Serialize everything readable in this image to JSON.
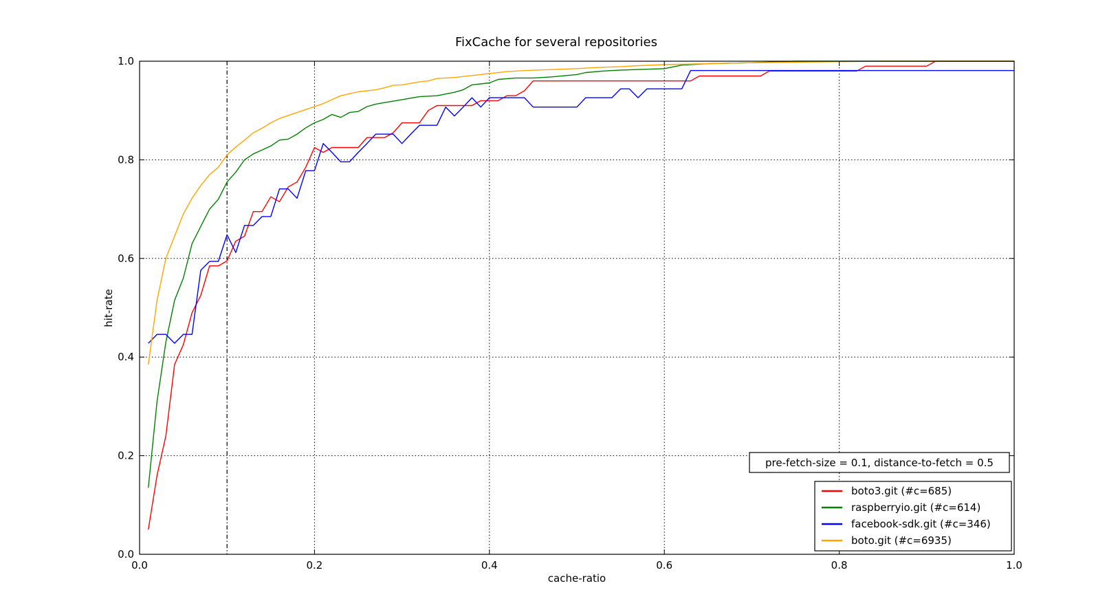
{
  "chart_data": {
    "type": "line",
    "title": "FixCache for several repositories",
    "xlabel": "cache-ratio",
    "ylabel": "hit-rate",
    "xlim": [
      0.0,
      1.0
    ],
    "ylim": [
      0.0,
      1.0
    ],
    "xticks": [
      0.0,
      0.2,
      0.4,
      0.6,
      0.8,
      1.0
    ],
    "xtick_labels": [
      "0.0",
      "0.2",
      "0.4",
      "0.6",
      "0.8",
      "1.0"
    ],
    "yticks": [
      0.0,
      0.2,
      0.4,
      0.6,
      0.8,
      1.0
    ],
    "ytick_labels": [
      "0.0",
      "0.2",
      "0.4",
      "0.6",
      "0.8",
      "1.0"
    ],
    "grid": true,
    "vline_x": 0.1,
    "annotation": "pre-fetch-size = 0.1, distance-to-fetch = 0.5",
    "legend_position": "lower-right",
    "series": [
      {
        "name": "boto3.git (#c=685)",
        "color": "#ff0000",
        "points": [
          [
            0.01,
            0.05
          ],
          [
            0.02,
            0.16
          ],
          [
            0.03,
            0.24
          ],
          [
            0.04,
            0.385
          ],
          [
            0.05,
            0.425
          ],
          [
            0.06,
            0.49
          ],
          [
            0.07,
            0.525
          ],
          [
            0.08,
            0.585
          ],
          [
            0.09,
            0.585
          ],
          [
            0.1,
            0.595
          ],
          [
            0.11,
            0.635
          ],
          [
            0.12,
            0.645
          ],
          [
            0.13,
            0.695
          ],
          [
            0.14,
            0.695
          ],
          [
            0.15,
            0.725
          ],
          [
            0.16,
            0.715
          ],
          [
            0.17,
            0.745
          ],
          [
            0.18,
            0.755
          ],
          [
            0.19,
            0.785
          ],
          [
            0.2,
            0.825
          ],
          [
            0.21,
            0.815
          ],
          [
            0.22,
            0.825
          ],
          [
            0.25,
            0.825
          ],
          [
            0.26,
            0.845
          ],
          [
            0.28,
            0.845
          ],
          [
            0.29,
            0.855
          ],
          [
            0.3,
            0.875
          ],
          [
            0.32,
            0.875
          ],
          [
            0.33,
            0.9
          ],
          [
            0.34,
            0.91
          ],
          [
            0.38,
            0.91
          ],
          [
            0.39,
            0.92
          ],
          [
            0.41,
            0.92
          ],
          [
            0.42,
            0.93
          ],
          [
            0.43,
            0.93
          ],
          [
            0.44,
            0.94
          ],
          [
            0.45,
            0.96
          ],
          [
            0.63,
            0.96
          ],
          [
            0.64,
            0.97
          ],
          [
            0.71,
            0.97
          ],
          [
            0.72,
            0.98
          ],
          [
            0.82,
            0.98
          ],
          [
            0.83,
            0.99
          ],
          [
            0.9,
            0.99
          ],
          [
            0.91,
            1.0
          ],
          [
            1.0,
            1.0
          ]
        ]
      },
      {
        "name": "raspberryio.git (#c=614)",
        "color": "#008000",
        "points": [
          [
            0.01,
            0.135
          ],
          [
            0.02,
            0.31
          ],
          [
            0.03,
            0.43
          ],
          [
            0.04,
            0.515
          ],
          [
            0.05,
            0.56
          ],
          [
            0.06,
            0.63
          ],
          [
            0.07,
            0.665
          ],
          [
            0.08,
            0.7
          ],
          [
            0.09,
            0.72
          ],
          [
            0.1,
            0.755
          ],
          [
            0.11,
            0.775
          ],
          [
            0.12,
            0.8
          ],
          [
            0.13,
            0.812
          ],
          [
            0.14,
            0.82
          ],
          [
            0.15,
            0.828
          ],
          [
            0.16,
            0.84
          ],
          [
            0.17,
            0.842
          ],
          [
            0.18,
            0.852
          ],
          [
            0.19,
            0.865
          ],
          [
            0.2,
            0.875
          ],
          [
            0.21,
            0.882
          ],
          [
            0.22,
            0.892
          ],
          [
            0.23,
            0.886
          ],
          [
            0.24,
            0.896
          ],
          [
            0.25,
            0.898
          ],
          [
            0.26,
            0.908
          ],
          [
            0.27,
            0.913
          ],
          [
            0.28,
            0.916
          ],
          [
            0.3,
            0.922
          ],
          [
            0.32,
            0.928
          ],
          [
            0.34,
            0.93
          ],
          [
            0.36,
            0.937
          ],
          [
            0.37,
            0.942
          ],
          [
            0.38,
            0.952
          ],
          [
            0.4,
            0.956
          ],
          [
            0.41,
            0.963
          ],
          [
            0.43,
            0.966
          ],
          [
            0.45,
            0.966
          ],
          [
            0.47,
            0.968
          ],
          [
            0.5,
            0.973
          ],
          [
            0.51,
            0.977
          ],
          [
            0.53,
            0.98
          ],
          [
            0.55,
            0.982
          ],
          [
            0.6,
            0.985
          ],
          [
            0.62,
            0.992
          ],
          [
            0.65,
            0.995
          ],
          [
            0.7,
            0.997
          ],
          [
            0.75,
            1.0
          ],
          [
            1.0,
            1.0
          ]
        ]
      },
      {
        "name": "facebook-sdk.git (#c=346)",
        "color": "#0000ff",
        "points": [
          [
            0.01,
            0.428
          ],
          [
            0.02,
            0.446
          ],
          [
            0.03,
            0.446
          ],
          [
            0.04,
            0.428
          ],
          [
            0.05,
            0.446
          ],
          [
            0.06,
            0.446
          ],
          [
            0.07,
            0.576
          ],
          [
            0.08,
            0.594
          ],
          [
            0.09,
            0.594
          ],
          [
            0.1,
            0.648
          ],
          [
            0.11,
            0.612
          ],
          [
            0.12,
            0.667
          ],
          [
            0.13,
            0.667
          ],
          [
            0.14,
            0.685
          ],
          [
            0.15,
            0.685
          ],
          [
            0.16,
            0.741
          ],
          [
            0.17,
            0.741
          ],
          [
            0.18,
            0.722
          ],
          [
            0.19,
            0.778
          ],
          [
            0.2,
            0.778
          ],
          [
            0.21,
            0.833
          ],
          [
            0.22,
            0.815
          ],
          [
            0.23,
            0.796
          ],
          [
            0.24,
            0.796
          ],
          [
            0.25,
            0.815
          ],
          [
            0.26,
            0.833
          ],
          [
            0.27,
            0.852
          ],
          [
            0.29,
            0.852
          ],
          [
            0.3,
            0.833
          ],
          [
            0.31,
            0.852
          ],
          [
            0.32,
            0.87
          ],
          [
            0.34,
            0.87
          ],
          [
            0.35,
            0.907
          ],
          [
            0.36,
            0.889
          ],
          [
            0.37,
            0.907
          ],
          [
            0.38,
            0.926
          ],
          [
            0.39,
            0.907
          ],
          [
            0.4,
            0.926
          ],
          [
            0.41,
            0.926
          ],
          [
            0.43,
            0.926
          ],
          [
            0.44,
            0.926
          ],
          [
            0.45,
            0.907
          ],
          [
            0.5,
            0.907
          ],
          [
            0.51,
            0.926
          ],
          [
            0.54,
            0.926
          ],
          [
            0.55,
            0.944
          ],
          [
            0.56,
            0.944
          ],
          [
            0.57,
            0.926
          ],
          [
            0.58,
            0.944
          ],
          [
            0.62,
            0.944
          ],
          [
            0.63,
            0.981
          ],
          [
            1.0,
            0.981
          ]
        ]
      },
      {
        "name": "boto.git (#c=6935)",
        "color": "#ffa500",
        "points": [
          [
            0.01,
            0.385
          ],
          [
            0.02,
            0.515
          ],
          [
            0.03,
            0.6
          ],
          [
            0.04,
            0.645
          ],
          [
            0.05,
            0.69
          ],
          [
            0.06,
            0.722
          ],
          [
            0.07,
            0.748
          ],
          [
            0.08,
            0.77
          ],
          [
            0.09,
            0.785
          ],
          [
            0.1,
            0.81
          ],
          [
            0.11,
            0.826
          ],
          [
            0.12,
            0.84
          ],
          [
            0.13,
            0.855
          ],
          [
            0.14,
            0.864
          ],
          [
            0.15,
            0.875
          ],
          [
            0.16,
            0.884
          ],
          [
            0.17,
            0.89
          ],
          [
            0.18,
            0.896
          ],
          [
            0.19,
            0.902
          ],
          [
            0.2,
            0.908
          ],
          [
            0.21,
            0.914
          ],
          [
            0.22,
            0.922
          ],
          [
            0.23,
            0.93
          ],
          [
            0.24,
            0.934
          ],
          [
            0.25,
            0.938
          ],
          [
            0.27,
            0.942
          ],
          [
            0.28,
            0.946
          ],
          [
            0.29,
            0.951
          ],
          [
            0.3,
            0.952
          ],
          [
            0.32,
            0.958
          ],
          [
            0.33,
            0.96
          ],
          [
            0.34,
            0.965
          ],
          [
            0.36,
            0.967
          ],
          [
            0.38,
            0.971
          ],
          [
            0.4,
            0.975
          ],
          [
            0.42,
            0.979
          ],
          [
            0.44,
            0.981
          ],
          [
            0.47,
            0.983
          ],
          [
            0.5,
            0.985
          ],
          [
            0.52,
            0.987
          ],
          [
            0.55,
            0.989
          ],
          [
            0.57,
            0.991
          ],
          [
            0.6,
            0.993
          ],
          [
            0.65,
            0.995
          ],
          [
            0.7,
            0.997
          ],
          [
            0.75,
            0.998
          ],
          [
            0.8,
            0.999
          ],
          [
            0.85,
            1.0
          ],
          [
            1.0,
            1.0
          ]
        ]
      }
    ]
  }
}
